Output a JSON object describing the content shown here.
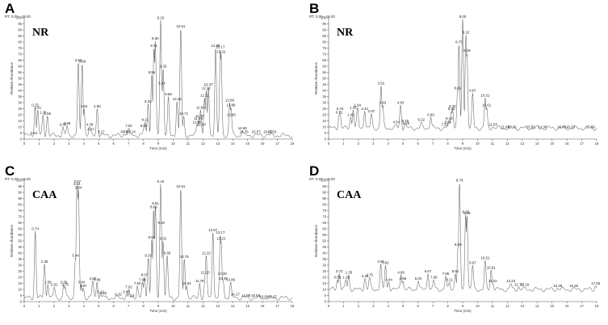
{
  "chart_data": [
    {
      "type": "line",
      "panel": "A",
      "sample": "NR",
      "rt_range": "RT: 0.00 - 18.00",
      "xlabel": "Time (min)",
      "ylabel": "Relative Abundance",
      "xlim": [
        0,
        18
      ],
      "ylim": [
        0,
        100
      ],
      "x_ticks": [
        "0",
        "1",
        "2",
        "3",
        "4",
        "5",
        "6",
        "7",
        "8",
        "9",
        "10",
        "11",
        "12",
        "13",
        "14",
        "15",
        "16",
        "17",
        "18"
      ],
      "y_ticks": [
        "0",
        "5",
        "10",
        "15",
        "20",
        "25",
        "30",
        "35",
        "40",
        "45",
        "50",
        "55",
        "60",
        "65",
        "70",
        "75",
        "80",
        "85",
        "90",
        "95",
        "100"
      ],
      "peaks": [
        {
          "label": "0.64",
          "x": 0.64,
          "y": 3
        },
        {
          "label": "0.73",
          "x": 0.73,
          "y": 26
        },
        {
          "label": "0.91",
          "x": 0.91,
          "y": 24
        },
        {
          "label": "1.26",
          "x": 1.26,
          "y": 20
        },
        {
          "label": "1.56",
          "x": 1.56,
          "y": 19
        },
        {
          "label": "2.60",
          "x": 2.6,
          "y": 10
        },
        {
          "label": "2.88",
          "x": 2.88,
          "y": 11
        },
        {
          "label": "3.63",
          "x": 3.63,
          "y": 63
        },
        {
          "label": "3.89",
          "x": 3.89,
          "y": 62
        },
        {
          "label": "4.02",
          "x": 4.02,
          "y": 25
        },
        {
          "label": "4.39",
          "x": 4.39,
          "y": 10
        },
        {
          "label": "4.47",
          "x": 4.47,
          "y": 6
        },
        {
          "label": "4.90",
          "x": 4.9,
          "y": 25
        },
        {
          "label": "5.17",
          "x": 5.17,
          "y": 4
        },
        {
          "label": "6.71",
          "x": 6.71,
          "y": 4
        },
        {
          "label": "6.86",
          "x": 6.86,
          "y": 4
        },
        {
          "label": "7.02",
          "x": 7.02,
          "y": 9
        },
        {
          "label": "7.24",
          "x": 7.24,
          "y": 4
        },
        {
          "label": "8.03",
          "x": 8.03,
          "y": 9
        },
        {
          "label": "8.11",
          "x": 8.11,
          "y": 14
        },
        {
          "label": "8.32",
          "x": 8.32,
          "y": 29
        },
        {
          "label": "8.56",
          "x": 8.56,
          "y": 53
        },
        {
          "label": "8.71",
          "x": 8.71,
          "y": 75
        },
        {
          "label": "8.80",
          "x": 8.8,
          "y": 81
        },
        {
          "label": "9.16",
          "x": 9.16,
          "y": 98
        },
        {
          "label": "9.24",
          "x": 9.24,
          "y": 44
        },
        {
          "label": "9.33",
          "x": 9.33,
          "y": 58
        },
        {
          "label": "9.68",
          "x": 9.68,
          "y": 35
        },
        {
          "label": "10.26",
          "x": 10.26,
          "y": 31
        },
        {
          "label": "10.51",
          "x": 10.51,
          "y": 91
        },
        {
          "label": "10.71",
          "x": 10.71,
          "y": 19
        },
        {
          "label": "11.60",
          "x": 11.6,
          "y": 12
        },
        {
          "label": "11.69",
          "x": 11.69,
          "y": 15
        },
        {
          "label": "11.78",
          "x": 11.78,
          "y": 17
        },
        {
          "label": "11.84",
          "x": 11.84,
          "y": 24
        },
        {
          "label": "11.90",
          "x": 11.9,
          "y": 10
        },
        {
          "label": "12.11",
          "x": 12.11,
          "y": 34
        },
        {
          "label": "12.22",
          "x": 12.22,
          "y": 40
        },
        {
          "label": "12.37",
          "x": 12.37,
          "y": 43
        },
        {
          "label": "12.85",
          "x": 12.85,
          "y": 75
        },
        {
          "label": "13.17",
          "x": 13.17,
          "y": 74
        },
        {
          "label": "13.22",
          "x": 13.22,
          "y": 70
        },
        {
          "label": "13.80",
          "x": 13.8,
          "y": 30
        },
        {
          "label": "13.88",
          "x": 13.88,
          "y": 26
        },
        {
          "label": "13.90",
          "x": 13.9,
          "y": 18
        },
        {
          "label": "14.65",
          "x": 14.65,
          "y": 7
        },
        {
          "label": "14.76",
          "x": 14.76,
          "y": 4
        },
        {
          "label": "15.57",
          "x": 15.57,
          "y": 4
        },
        {
          "label": "16.37",
          "x": 16.37,
          "y": 4
        },
        {
          "label": "16.63",
          "x": 16.63,
          "y": 4
        }
      ]
    },
    {
      "type": "line",
      "panel": "B",
      "sample": "NR",
      "rt_range": "RT: 0.00 - 18.00",
      "xlabel": "Time (min)",
      "ylabel": "Relative Abundance",
      "xlim": [
        0,
        18
      ],
      "ylim": [
        0,
        100
      ],
      "x_ticks": [
        "0",
        "1",
        "2",
        "3",
        "4",
        "5",
        "6",
        "7",
        "8",
        "9",
        "10",
        "11",
        "12",
        "13",
        "14",
        "15",
        "16",
        "17",
        "18"
      ],
      "y_ticks": [
        "0",
        "5",
        "10",
        "15",
        "20",
        "25",
        "30",
        "35",
        "40",
        "45",
        "50",
        "55",
        "60",
        "65",
        "70",
        "75",
        "80",
        "85",
        "90",
        "95",
        "100"
      ],
      "peaks": [
        {
          "label": "0.71",
          "x": 0.71,
          "y": 20
        },
        {
          "label": "0.76",
          "x": 0.76,
          "y": 23
        },
        {
          "label": "1.48",
          "x": 1.48,
          "y": 18
        },
        {
          "label": "1.65",
          "x": 1.65,
          "y": 24
        },
        {
          "label": "1.94",
          "x": 1.94,
          "y": 26
        },
        {
          "label": "2.42",
          "x": 2.42,
          "y": 23
        },
        {
          "label": "2.87",
          "x": 2.87,
          "y": 21
        },
        {
          "label": "3.52",
          "x": 3.52,
          "y": 44
        },
        {
          "label": "3.63",
          "x": 3.63,
          "y": 28
        },
        {
          "label": "4.54",
          "x": 4.54,
          "y": 12
        },
        {
          "label": "4.83",
          "x": 4.83,
          "y": 28
        },
        {
          "label": "5.15",
          "x": 5.15,
          "y": 13
        },
        {
          "label": "5.20",
          "x": 5.2,
          "y": 11
        },
        {
          "label": "6.22",
          "x": 6.22,
          "y": 14
        },
        {
          "label": "6.86",
          "x": 6.86,
          "y": 18
        },
        {
          "label": "7.81",
          "x": 7.81,
          "y": 10
        },
        {
          "label": "8.01",
          "x": 8.01,
          "y": 12
        },
        {
          "label": "8.10",
          "x": 8.1,
          "y": 15
        },
        {
          "label": "8.25",
          "x": 8.25,
          "y": 23
        },
        {
          "label": "8.32",
          "x": 8.32,
          "y": 25
        },
        {
          "label": "8.66",
          "x": 8.66,
          "y": 40
        },
        {
          "label": "8.75",
          "x": 8.75,
          "y": 78
        },
        {
          "label": "9.00",
          "x": 9.0,
          "y": 99
        },
        {
          "label": "9.22",
          "x": 9.22,
          "y": 86
        },
        {
          "label": "9.29",
          "x": 9.29,
          "y": 71
        },
        {
          "label": "9.67",
          "x": 9.67,
          "y": 38
        },
        {
          "label": "10.51",
          "x": 10.51,
          "y": 34
        },
        {
          "label": "10.61",
          "x": 10.61,
          "y": 26
        },
        {
          "label": "11.03",
          "x": 11.03,
          "y": 10
        },
        {
          "label": "11.86",
          "x": 11.86,
          "y": 8
        },
        {
          "label": "12.32",
          "x": 12.32,
          "y": 8
        },
        {
          "label": "13.56",
          "x": 13.56,
          "y": 8
        },
        {
          "label": "14.36",
          "x": 14.36,
          "y": 8
        },
        {
          "label": "15.65",
          "x": 15.65,
          "y": 8
        },
        {
          "label": "16.23",
          "x": 16.23,
          "y": 8
        },
        {
          "label": "17.58",
          "x": 17.58,
          "y": 8
        }
      ]
    },
    {
      "type": "line",
      "panel": "C",
      "sample": "CAA",
      "rt_range": "RT: 0.00 - 18.00",
      "xlabel": "Time (min)",
      "ylabel": "Relative Abundance",
      "xlim": [
        0,
        18
      ],
      "ylim": [
        0,
        100
      ],
      "x_ticks": [
        "0",
        "1",
        "2",
        "3",
        "4",
        "5",
        "6",
        "7",
        "8",
        "9",
        "10",
        "11",
        "12",
        "13",
        "14",
        "15",
        "16",
        "17",
        "18"
      ],
      "y_ticks": [
        "0",
        "5",
        "10",
        "15",
        "20",
        "25",
        "30",
        "35",
        "40",
        "45",
        "50",
        "55",
        "60",
        "65",
        "70",
        "75",
        "80",
        "85",
        "90",
        "95",
        "100"
      ],
      "peaks": [
        {
          "label": "0.74",
          "x": 0.74,
          "y": 58
        },
        {
          "label": "1.36",
          "x": 1.36,
          "y": 31
        },
        {
          "label": "1.59",
          "x": 1.59,
          "y": 14
        },
        {
          "label": "2.02",
          "x": 2.02,
          "y": 12
        },
        {
          "label": "2.66",
          "x": 2.66,
          "y": 14
        },
        {
          "label": "2.75",
          "x": 2.75,
          "y": 12
        },
        {
          "label": "3.44",
          "x": 3.44,
          "y": 36
        },
        {
          "label": "3.54",
          "x": 3.54,
          "y": 95
        },
        {
          "label": "3.57",
          "x": 3.57,
          "y": 97
        },
        {
          "label": "3.64",
          "x": 3.64,
          "y": 92
        },
        {
          "label": "3.84",
          "x": 3.84,
          "y": 14
        },
        {
          "label": "3.97",
          "x": 3.97,
          "y": 11
        },
        {
          "label": "4.60",
          "x": 4.6,
          "y": 17
        },
        {
          "label": "4.89",
          "x": 4.89,
          "y": 16
        },
        {
          "label": "5.12",
          "x": 5.12,
          "y": 6
        },
        {
          "label": "5.30",
          "x": 5.3,
          "y": 5
        },
        {
          "label": "6.32",
          "x": 6.32,
          "y": 4
        },
        {
          "label": "6.86",
          "x": 6.86,
          "y": 6
        },
        {
          "label": "7.02",
          "x": 7.02,
          "y": 10
        },
        {
          "label": "7.15",
          "x": 7.15,
          "y": 3
        },
        {
          "label": "7.60",
          "x": 7.6,
          "y": 13
        },
        {
          "label": "7.94",
          "x": 7.94,
          "y": 16
        },
        {
          "label": "8.07",
          "x": 8.07,
          "y": 20
        },
        {
          "label": "8.33",
          "x": 8.33,
          "y": 36
        },
        {
          "label": "8.56",
          "x": 8.56,
          "y": 51
        },
        {
          "label": "8.69",
          "x": 8.69,
          "y": 76
        },
        {
          "label": "8.81",
          "x": 8.81,
          "y": 79
        },
        {
          "label": "9.16",
          "x": 9.16,
          "y": 97
        },
        {
          "label": "9.20",
          "x": 9.2,
          "y": 63
        },
        {
          "label": "9.32",
          "x": 9.32,
          "y": 50
        },
        {
          "label": "9.60",
          "x": 9.6,
          "y": 38
        },
        {
          "label": "10.51",
          "x": 10.51,
          "y": 93
        },
        {
          "label": "10.75",
          "x": 10.75,
          "y": 35
        },
        {
          "label": "10.91",
          "x": 10.91,
          "y": 13
        },
        {
          "label": "11.78",
          "x": 11.78,
          "y": 15
        },
        {
          "label": "12.15",
          "x": 12.15,
          "y": 22
        },
        {
          "label": "12.22",
          "x": 12.22,
          "y": 38
        },
        {
          "label": "12.67",
          "x": 12.67,
          "y": 57
        },
        {
          "label": "13.17",
          "x": 13.17,
          "y": 55
        },
        {
          "label": "13.22",
          "x": 13.22,
          "y": 50
        },
        {
          "label": "13.30",
          "x": 13.3,
          "y": 21
        },
        {
          "label": "13.36",
          "x": 13.36,
          "y": 17
        },
        {
          "label": "13.86",
          "x": 13.86,
          "y": 16
        },
        {
          "label": "14.17",
          "x": 14.17,
          "y": 4
        },
        {
          "label": "14.89",
          "x": 14.89,
          "y": 3
        },
        {
          "label": "15.53",
          "x": 15.53,
          "y": 3
        },
        {
          "label": "16.09",
          "x": 16.09,
          "y": 2
        },
        {
          "label": "16.67",
          "x": 16.67,
          "y": 2
        }
      ]
    },
    {
      "type": "line",
      "panel": "D",
      "sample": "CAA",
      "rt_range": "RT: 0.00 - 18.00",
      "xlabel": "Time (min)",
      "ylabel": "Relative Abundance",
      "xlim": [
        0,
        18
      ],
      "ylim": [
        0,
        100
      ],
      "x_ticks": [
        "0",
        "1",
        "2",
        "3",
        "4",
        "5",
        "6",
        "7",
        "8",
        "9",
        "10",
        "11",
        "12",
        "13",
        "14",
        "15",
        "16",
        "17",
        "18"
      ],
      "y_ticks": [
        "0",
        "5",
        "10",
        "15",
        "20",
        "25",
        "30",
        "35",
        "40",
        "45",
        "50",
        "55",
        "60",
        "65",
        "70",
        "75",
        "80",
        "85",
        "90",
        "95",
        "100"
      ],
      "peaks": [
        {
          "label": "0.59",
          "x": 0.59,
          "y": 18
        },
        {
          "label": "0.72",
          "x": 0.72,
          "y": 23
        },
        {
          "label": "1.16",
          "x": 1.16,
          "y": 18
        },
        {
          "label": "1.35",
          "x": 1.35,
          "y": 22
        },
        {
          "label": "2.44",
          "x": 2.44,
          "y": 19
        },
        {
          "label": "2.75",
          "x": 2.75,
          "y": 20
        },
        {
          "label": "3.50",
          "x": 3.5,
          "y": 31
        },
        {
          "label": "3.82",
          "x": 3.82,
          "y": 30
        },
        {
          "label": "4.04",
          "x": 4.04,
          "y": 16
        },
        {
          "label": "4.86",
          "x": 4.86,
          "y": 22
        },
        {
          "label": "4.98",
          "x": 4.98,
          "y": 17
        },
        {
          "label": "6.02",
          "x": 6.02,
          "y": 17
        },
        {
          "label": "6.67",
          "x": 6.67,
          "y": 23
        },
        {
          "label": "7.06",
          "x": 7.06,
          "y": 18
        },
        {
          "label": "7.86",
          "x": 7.86,
          "y": 21
        },
        {
          "label": "8.11",
          "x": 8.11,
          "y": 16
        },
        {
          "label": "8.51",
          "x": 8.51,
          "y": 23
        },
        {
          "label": "8.69",
          "x": 8.69,
          "y": 45
        },
        {
          "label": "8.79",
          "x": 8.79,
          "y": 98
        },
        {
          "label": "9.20",
          "x": 9.2,
          "y": 72
        },
        {
          "label": "9.29",
          "x": 9.29,
          "y": 71
        },
        {
          "label": "9.67",
          "x": 9.67,
          "y": 30
        },
        {
          "label": "10.51",
          "x": 10.51,
          "y": 34
        },
        {
          "label": "10.91",
          "x": 10.91,
          "y": 26
        },
        {
          "label": "11.02",
          "x": 11.02,
          "y": 15
        },
        {
          "label": "12.23",
          "x": 12.23,
          "y": 15
        },
        {
          "label": "12.76",
          "x": 12.76,
          "y": 12
        },
        {
          "label": "13.16",
          "x": 13.16,
          "y": 12
        },
        {
          "label": "15.38",
          "x": 15.38,
          "y": 11
        },
        {
          "label": "16.46",
          "x": 16.46,
          "y": 11
        },
        {
          "label": "17.93",
          "x": 17.93,
          "y": 13
        }
      ]
    }
  ]
}
